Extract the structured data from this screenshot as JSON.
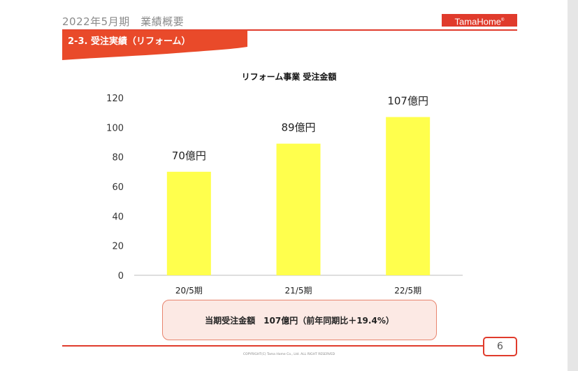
{
  "header": {
    "title": "2022年5月期　業績概要",
    "logo_text": "TamaHome",
    "logo_mark": "®"
  },
  "section": {
    "title": "2-3. 受注実績（リフォーム）"
  },
  "chart_data": {
    "type": "bar",
    "title": "リフォーム事業 受注金額",
    "categories": [
      "20/5期",
      "21/5期",
      "22/5期"
    ],
    "values": [
      70,
      89,
      107
    ],
    "data_labels": [
      "70億円",
      "89億円",
      "107億円"
    ],
    "y_ticks": [
      "0",
      "20",
      "40",
      "60",
      "80",
      "100",
      "120"
    ],
    "ylim": [
      0,
      120
    ],
    "grid": false,
    "bar_color": "#ffff4d"
  },
  "summary": {
    "text": "当期受注金額　107億円（前年同期比＋19.4%）"
  },
  "footer": {
    "page_number": "6",
    "copyright": "COPYRIGHT(C)  Tama Home Co., Ltd.   ALL RIGHT RESERVED"
  },
  "colors": {
    "brand_red": "#e03b2c",
    "summary_bg": "#fce9e4"
  }
}
